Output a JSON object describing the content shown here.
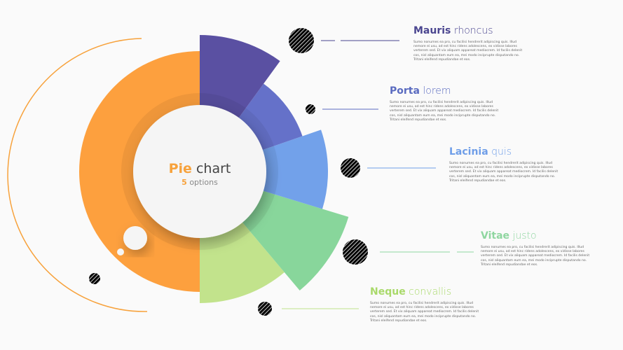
{
  "center": {
    "title_bold": "Pie",
    "title_rest": "chart",
    "count": "5",
    "count_label": "options"
  },
  "options": [
    {
      "bold": "Mauris",
      "light": "rhoncus",
      "text": "Sumo nonumes ea pro, cu facilisi hendrerit adipiscing quis. Illud nemore ei usu, ad est hinc ridens adolescens, ex vidisse labores verterem sed. Et vix aliquam appareat mediocrem. Id facilis delenit cos, nisl aliquantam eum ea, mei modo inciprupte disputando no. Tritani eleifend repudiandae et eos."
    },
    {
      "bold": "Porta",
      "light": "lorem",
      "text": "Sumo nonumes ea pro, cu facilisi hendrerit adipiscing quis. Illud nemore ei usu, ad est hinc ridens adolescens, ex vidisse labores verterem sed. Et vix aliquam appareat mediocrem. Id facilis delenit cos, nisl aliquantam eum ea, mei modo inciprupte disputando no. Tritani eleifend repudiandae et eos."
    },
    {
      "bold": "Lacinia",
      "light": "quis",
      "text": "Sumo nonumes ea pro, cu facilisi hendrerit adipiscing quis. Illud nemore ei usu, ad est hinc ridens adolescens, ex vidisse labores verterem sed. Et vix aliquam appareat mediocrem. Id facilis delenit cos, nisl aliquantam eum ea, mei modo inciprupte disputando no. Tritani eleifend repudiandae et eos."
    },
    {
      "bold": "Vitae",
      "light": "justo",
      "text": "Sumo nonumes ea pro, cu facilisi hendrerit adipiscing quis. Illud nemore ei usu, ad est hinc ridens adolescens, ex vidisse labores verterem sed. Et vix aliquam appareat mediocrem. Id facilis delenit cos, nisl aliquantam eum ea, mei modo inciprupte disputando no. Tritani eleifend repudiandae et eos."
    },
    {
      "bold": "Neque",
      "light": "convallis",
      "text": "Sumo nonumes ea pro, cu facilisi hendrerit adipiscing quis. Illud nemore ei usu, ad est hinc ridens adolescens, ex vidisse labores verterem sed. Et vix aliquam appareat mediocrem. Id facilis delenit cos, nisl aliquantam eum ea, mei modo inciprupte disputando no. Tritani eleifend repudiandae et eos."
    }
  ]
}
